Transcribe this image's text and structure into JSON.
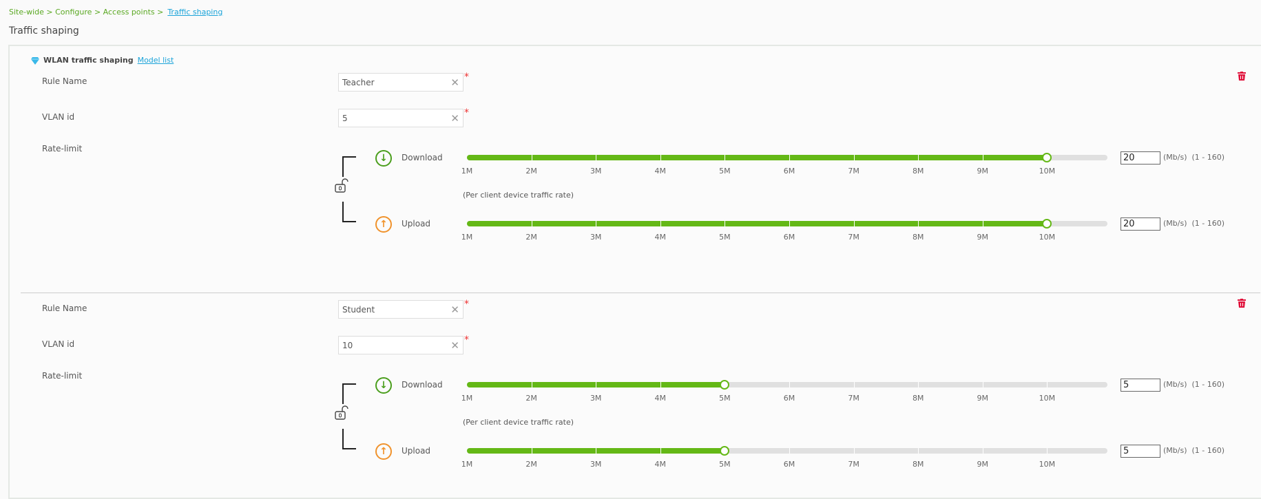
{
  "breadcrumb": {
    "items": [
      "Site-wide",
      "Configure",
      "Access points"
    ],
    "current": "Traffic shaping"
  },
  "page_title": "Traffic shaping",
  "section": {
    "title": "WLAN traffic shaping",
    "link": "Model list"
  },
  "labels": {
    "rule_name": "Rule Name",
    "vlan_id": "VLAN id",
    "rate_limit": "Rate-limit",
    "download": "Download",
    "upload": "Upload",
    "per_client": "(Per client device traffic rate)",
    "unit": "(Mb/s)",
    "range": "(1 - 160)",
    "required": "*"
  },
  "ticks": [
    "1M",
    "2M",
    "3M",
    "4M",
    "5M",
    "6M",
    "7M",
    "8M",
    "9M",
    "10M"
  ],
  "rules": [
    {
      "name": "Teacher",
      "vlan": "5",
      "download": {
        "value": "20",
        "slider_position_mbps": 10
      },
      "upload": {
        "value": "20",
        "slider_position_mbps": 10
      }
    },
    {
      "name": "Student",
      "vlan": "10",
      "download": {
        "value": "5",
        "slider_position_mbps": 5
      },
      "upload": {
        "value": "5",
        "slider_position_mbps": 5
      }
    }
  ],
  "colors": {
    "accent": "#64b816",
    "link": "#1aa3d9",
    "download": "#4a9e1c",
    "upload": "#f0922b",
    "delete": "#e0103a"
  }
}
